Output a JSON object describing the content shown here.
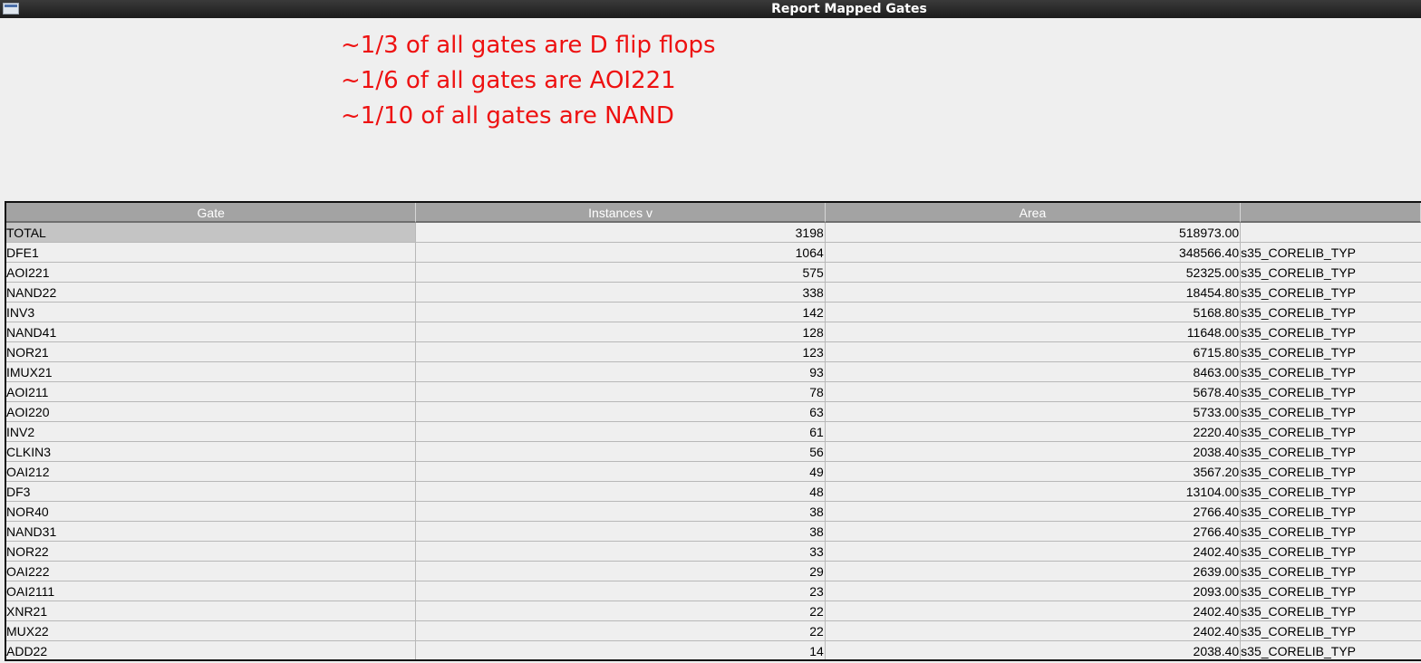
{
  "window": {
    "title": "Report Mapped Gates"
  },
  "annotations": [
    "~1/3 of all gates are D flip flops",
    "~1/6 of all gates are AOI221",
    "~1/10 of all gates are NAND"
  ],
  "colors": {
    "annotation": "#ee1111",
    "header_bg": "#a3a3a3",
    "total_highlight": "#c4c4c4"
  },
  "table": {
    "columns": [
      "Gate",
      "Instances v",
      "Area",
      ""
    ],
    "rows": [
      {
        "gate": "TOTAL",
        "instances": "3198",
        "area": "518973.00",
        "library": ""
      },
      {
        "gate": "DFE1",
        "instances": "1064",
        "area": "348566.40",
        "library": "s35_CORELIB_TYP"
      },
      {
        "gate": "AOI221",
        "instances": "575",
        "area": "52325.00",
        "library": "s35_CORELIB_TYP"
      },
      {
        "gate": "NAND22",
        "instances": "338",
        "area": "18454.80",
        "library": "s35_CORELIB_TYP"
      },
      {
        "gate": "INV3",
        "instances": "142",
        "area": "5168.80",
        "library": "s35_CORELIB_TYP"
      },
      {
        "gate": "NAND41",
        "instances": "128",
        "area": "11648.00",
        "library": "s35_CORELIB_TYP"
      },
      {
        "gate": "NOR21",
        "instances": "123",
        "area": "6715.80",
        "library": "s35_CORELIB_TYP"
      },
      {
        "gate": "IMUX21",
        "instances": "93",
        "area": "8463.00",
        "library": "s35_CORELIB_TYP"
      },
      {
        "gate": "AOI211",
        "instances": "78",
        "area": "5678.40",
        "library": "s35_CORELIB_TYP"
      },
      {
        "gate": "AOI220",
        "instances": "63",
        "area": "5733.00",
        "library": "s35_CORELIB_TYP"
      },
      {
        "gate": "INV2",
        "instances": "61",
        "area": "2220.40",
        "library": "s35_CORELIB_TYP"
      },
      {
        "gate": "CLKIN3",
        "instances": "56",
        "area": "2038.40",
        "library": "s35_CORELIB_TYP"
      },
      {
        "gate": "OAI212",
        "instances": "49",
        "area": "3567.20",
        "library": "s35_CORELIB_TYP"
      },
      {
        "gate": "DF3",
        "instances": "48",
        "area": "13104.00",
        "library": "s35_CORELIB_TYP"
      },
      {
        "gate": "NOR40",
        "instances": "38",
        "area": "2766.40",
        "library": "s35_CORELIB_TYP"
      },
      {
        "gate": "NAND31",
        "instances": "38",
        "area": "2766.40",
        "library": "s35_CORELIB_TYP"
      },
      {
        "gate": "NOR22",
        "instances": "33",
        "area": "2402.40",
        "library": "s35_CORELIB_TYP"
      },
      {
        "gate": "OAI222",
        "instances": "29",
        "area": "2639.00",
        "library": "s35_CORELIB_TYP"
      },
      {
        "gate": "OAI2111",
        "instances": "23",
        "area": "2093.00",
        "library": "s35_CORELIB_TYP"
      },
      {
        "gate": "XNR21",
        "instances": "22",
        "area": "2402.40",
        "library": "s35_CORELIB_TYP"
      },
      {
        "gate": "MUX22",
        "instances": "22",
        "area": "2402.40",
        "library": "s35_CORELIB_TYP"
      },
      {
        "gate": "ADD22",
        "instances": "14",
        "area": "2038.40",
        "library": "s35_CORELIB_TYP"
      }
    ]
  }
}
